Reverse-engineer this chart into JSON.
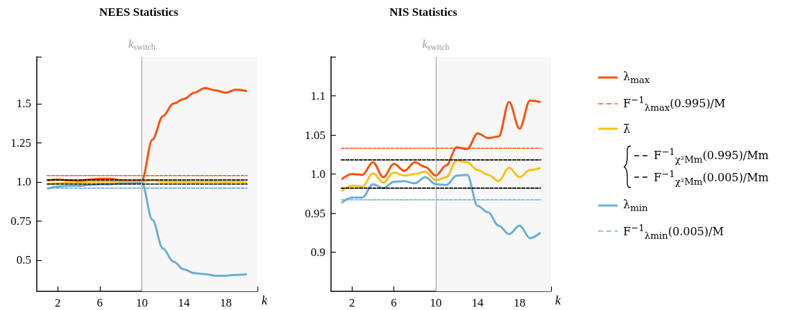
{
  "chart_data": [
    {
      "type": "line",
      "title": "NEES Statistics",
      "xlabel": "k",
      "x": [
        1,
        2,
        3,
        4,
        5,
        6,
        7,
        8,
        9,
        10,
        11,
        12,
        13,
        14,
        15,
        16,
        17,
        18,
        19,
        20
      ],
      "xlim": [
        0,
        21
      ],
      "xticks": [
        2,
        6,
        10,
        14,
        18,
        {
          "value": 21,
          "label": null
        }
      ],
      "ylim": [
        0.3,
        1.8
      ],
      "yticks": [
        0.5,
        0.75,
        {
          "value": 1,
          "label": "1.0"
        },
        1.25,
        1.5,
        {
          "value": 1.8,
          "label": null
        }
      ],
      "marker": "none",
      "line_style": "solid",
      "bands": [
        {
          "axis": "x",
          "from": 10,
          "to": 21,
          "color": "#f7f7f7"
        }
      ],
      "ref_lines": [
        {
          "axis": "x",
          "value": 10,
          "label": "k$_{switch}$",
          "color": "#999999"
        }
      ],
      "series": [
        {
          "type": "line",
          "line_style": "dashed",
          "color": "#fc4f09",
          "values": [
            1.04,
            1.04,
            1.04,
            1.04,
            1.04,
            1.04,
            1.04,
            1.04,
            1.04,
            1.04,
            1.04,
            1.04,
            1.04,
            1.04,
            1.04,
            1.04,
            1.04,
            1.04,
            1.04,
            1.04
          ]
        },
        {
          "type": "line",
          "line_style": "dashed",
          "color": "#000000",
          "values": [
            1.012,
            1.012,
            1.012,
            1.012,
            1.012,
            1.012,
            1.012,
            1.012,
            1.012,
            1.012,
            1.012,
            1.012,
            1.012,
            1.012,
            1.012,
            1.012,
            1.012,
            1.012,
            1.012,
            1.012
          ]
        },
        {
          "type": "line",
          "line_style": "dashed",
          "color": "#000000",
          "values": [
            0.986,
            0.986,
            0.986,
            0.986,
            0.986,
            0.986,
            0.986,
            0.986,
            0.986,
            0.986,
            0.986,
            0.986,
            0.986,
            0.986,
            0.986,
            0.986,
            0.986,
            0.986,
            0.986,
            0.986
          ]
        },
        {
          "type": "line",
          "line_style": "dashed",
          "color": "#6aaed6",
          "values": [
            0.96,
            0.96,
            0.96,
            0.96,
            0.96,
            0.96,
            0.96,
            0.96,
            0.96,
            0.96,
            0.96,
            0.96,
            0.96,
            0.96,
            0.96,
            0.96,
            0.96,
            0.96,
            0.96,
            0.96
          ]
        },
        {
          "color": "#fc4f09",
          "values": [
            1.01,
            1.015,
            1.01,
            1.005,
            1.015,
            1.02,
            1.02,
            1.01,
            1.005,
            1.01,
            1.27,
            1.42,
            1.5,
            1.53,
            1.57,
            1.6,
            1.585,
            1.57,
            1.59,
            1.58
          ]
        },
        {
          "color": "#fbbf16",
          "values": [
            0.985,
            0.99,
            0.995,
            0.995,
            1.0,
            1.0,
            1.0,
            1.0,
            1.0,
            1.0,
            1.01,
            1.0,
            1.0,
            1.0,
            0.998,
            1.0,
            1.0,
            0.998,
            1.0,
            0.995
          ]
        },
        {
          "color": "#6aaed6",
          "values": [
            0.955,
            0.97,
            0.975,
            0.975,
            0.98,
            0.985,
            0.985,
            0.99,
            0.99,
            0.995,
            0.757,
            0.574,
            0.49,
            0.44,
            0.416,
            0.41,
            0.4,
            0.4,
            0.405,
            0.41
          ]
        }
      ]
    },
    {
      "type": "line",
      "title": "NIS Statistics",
      "xlabel": "k",
      "x": [
        1,
        2,
        3,
        4,
        5,
        6,
        7,
        8,
        9,
        10,
        11,
        12,
        13,
        14,
        15,
        16,
        17,
        18,
        19,
        20
      ],
      "xlim": [
        0,
        21
      ],
      "xticks": [
        2,
        6,
        10,
        14,
        18,
        {
          "value": 21,
          "label": null
        }
      ],
      "ylim": [
        0.85,
        1.15
      ],
      "yticks": [
        0.9,
        0.95,
        {
          "value": 1,
          "label": "1.0"
        },
        1.05,
        1.1,
        {
          "value": 1.15,
          "label": null
        }
      ],
      "marker": "none",
      "line_style": "solid",
      "legend": "right",
      "bands": [
        {
          "axis": "x",
          "from": 10,
          "to": 21,
          "color": "#f7f7f7"
        }
      ],
      "ref_lines": [
        {
          "axis": "x",
          "value": 10,
          "label": "k$_{switch}$",
          "color": "#999999"
        }
      ],
      "series": [
        {
          "name": "λ$_{max}$",
          "color": "#fc4f09",
          "values": [
            0.993,
            1.0,
            0.999,
            1.015,
            0.996,
            1.013,
            1.004,
            1.015,
            1.009,
            0.998,
            1.011,
            1.034,
            1.032,
            1.052,
            1.046,
            1.048,
            1.092,
            1.058,
            1.094,
            1.092
          ]
        },
        {
          "name": "F$^{−1}$$_{λmax}$(0.995)/M",
          "type": "line",
          "line_style": "dashed",
          "color": "#fc4f09",
          "values": [
            1.033,
            1.033,
            1.033,
            1.033,
            1.033,
            1.033,
            1.033,
            1.033,
            1.033,
            1.033,
            1.033,
            1.033,
            1.033,
            1.033,
            1.033,
            1.033,
            1.033,
            1.033,
            1.033,
            1.033
          ]
        },
        {
          "name": "λ̄",
          "color": "#fbbf16",
          "values": [
            0.978,
            0.985,
            0.984,
            1.001,
            0.989,
            1.002,
            0.998,
            1.0,
            1.003,
            0.992,
            0.996,
            1.017,
            1.015,
            1.005,
            0.999,
            0.991,
            1.008,
            0.996,
            1.005,
            1.008
          ]
        },
        {
          "name": "F$^{−1}$$_{χ²Mm}$(0.995)/Mm",
          "type": "line",
          "line_style": "dashed",
          "color": "#000000",
          "values": [
            1.018,
            1.018,
            1.018,
            1.018,
            1.018,
            1.018,
            1.018,
            1.018,
            1.018,
            1.018,
            1.018,
            1.018,
            1.018,
            1.018,
            1.018,
            1.018,
            1.018,
            1.018,
            1.018,
            1.018
          ]
        },
        {
          "name": "F$^{−1}$$_{χ²Mm}$(0.005)/Mm",
          "type": "line",
          "line_style": "dashed",
          "color": "#000000",
          "values": [
            0.982,
            0.982,
            0.982,
            0.982,
            0.982,
            0.982,
            0.982,
            0.982,
            0.982,
            0.982,
            0.982,
            0.982,
            0.982,
            0.982,
            0.982,
            0.982,
            0.982,
            0.982,
            0.982,
            0.982
          ]
        },
        {
          "name": "λ$_{min}$",
          "color": "#6aaed6",
          "values": [
            0.963,
            0.97,
            0.97,
            0.987,
            0.982,
            0.99,
            0.991,
            0.988,
            0.996,
            0.987,
            0.986,
            0.998,
            0.999,
            0.959,
            0.951,
            0.934,
            0.923,
            0.934,
            0.918,
            0.925
          ]
        },
        {
          "name": "F$^{−1}$$_{λmin}$(0.005)/M",
          "type": "line",
          "line_style": "dashed",
          "color": "#6aaed6",
          "values": [
            0.967,
            0.967,
            0.967,
            0.967,
            0.967,
            0.967,
            0.967,
            0.967,
            0.967,
            0.967,
            0.967,
            0.967,
            0.967,
            0.967,
            0.967,
            0.967,
            0.967,
            0.967,
            0.967,
            0.967
          ]
        }
      ]
    }
  ]
}
